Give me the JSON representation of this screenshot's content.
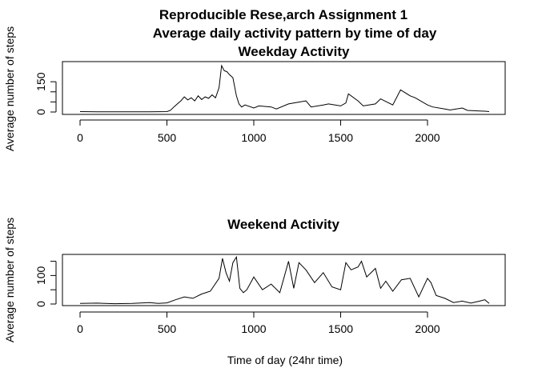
{
  "figure": {
    "title_line1": "Reproducible Rese,arch Assignment 1",
    "title_line2": "Average daily activity pattern by time of day",
    "xlabel": "Time of day (24hr time)"
  },
  "chart_data": [
    {
      "type": "line",
      "title": "Weekday Activity",
      "ylabel": "Average number of steps",
      "xlabel": "",
      "xlim": [
        0,
        2355
      ],
      "ylim": [
        0,
        230
      ],
      "xticks": [
        0,
        500,
        1000,
        1500,
        2000
      ],
      "yticks": [
        0,
        50,
        100,
        150
      ],
      "ytick_labels": [
        "0",
        "",
        "",
        "150"
      ],
      "grid": false,
      "series": [
        {
          "x": [
            0,
            100,
            200,
            300,
            400,
            500,
            520,
            540,
            560,
            580,
            600,
            620,
            640,
            660,
            680,
            700,
            720,
            740,
            760,
            780,
            800,
            815,
            830,
            845,
            860,
            880,
            900,
            915,
            930,
            950,
            1000,
            1030,
            1100,
            1130,
            1200,
            1230,
            1300,
            1330,
            1400,
            1430,
            1500,
            1530,
            1545,
            1600,
            1630,
            1700,
            1730,
            1800,
            1830,
            1845,
            1900,
            1930,
            2000,
            2030,
            2100,
            2130,
            2200,
            2230,
            2300,
            2330,
            2355
          ],
          "y": [
            2,
            1,
            1,
            1,
            1,
            2,
            8,
            25,
            40,
            55,
            75,
            60,
            70,
            55,
            80,
            62,
            75,
            68,
            85,
            70,
            120,
            230,
            205,
            200,
            185,
            170,
            80,
            40,
            25,
            35,
            20,
            30,
            25,
            15,
            40,
            45,
            55,
            25,
            35,
            40,
            30,
            45,
            90,
            55,
            30,
            40,
            65,
            35,
            85,
            110,
            80,
            70,
            35,
            25,
            15,
            10,
            20,
            8,
            5,
            4,
            2
          ]
        }
      ]
    },
    {
      "type": "line",
      "title": "Weekend Activity",
      "ylabel": "Average number of steps",
      "xlabel": "",
      "xlim": [
        0,
        2355
      ],
      "ylim": [
        0,
        160
      ],
      "xticks": [
        0,
        500,
        1000,
        1500,
        2000
      ],
      "yticks": [
        0,
        50,
        100,
        150
      ],
      "ytick_labels": [
        "0",
        "",
        "100",
        ""
      ],
      "grid": false,
      "series": [
        {
          "x": [
            0,
            100,
            200,
            300,
            400,
            450,
            500,
            550,
            600,
            650,
            700,
            750,
            800,
            820,
            840,
            860,
            880,
            900,
            920,
            940,
            960,
            1000,
            1050,
            1100,
            1150,
            1200,
            1230,
            1260,
            1300,
            1350,
            1400,
            1450,
            1500,
            1530,
            1560,
            1600,
            1620,
            1650,
            1700,
            1730,
            1760,
            1800,
            1850,
            1900,
            1950,
            2000,
            2020,
            2050,
            2100,
            2150,
            2200,
            2250,
            2300,
            2330,
            2355
          ],
          "y": [
            2,
            3,
            1,
            2,
            5,
            2,
            4,
            15,
            25,
            20,
            35,
            45,
            90,
            160,
            110,
            80,
            145,
            165,
            55,
            40,
            50,
            95,
            50,
            70,
            40,
            150,
            55,
            145,
            120,
            75,
            110,
            60,
            50,
            145,
            120,
            130,
            150,
            95,
            125,
            55,
            80,
            45,
            85,
            90,
            25,
            90,
            75,
            30,
            20,
            5,
            10,
            3,
            10,
            15,
            2
          ]
        }
      ]
    }
  ]
}
